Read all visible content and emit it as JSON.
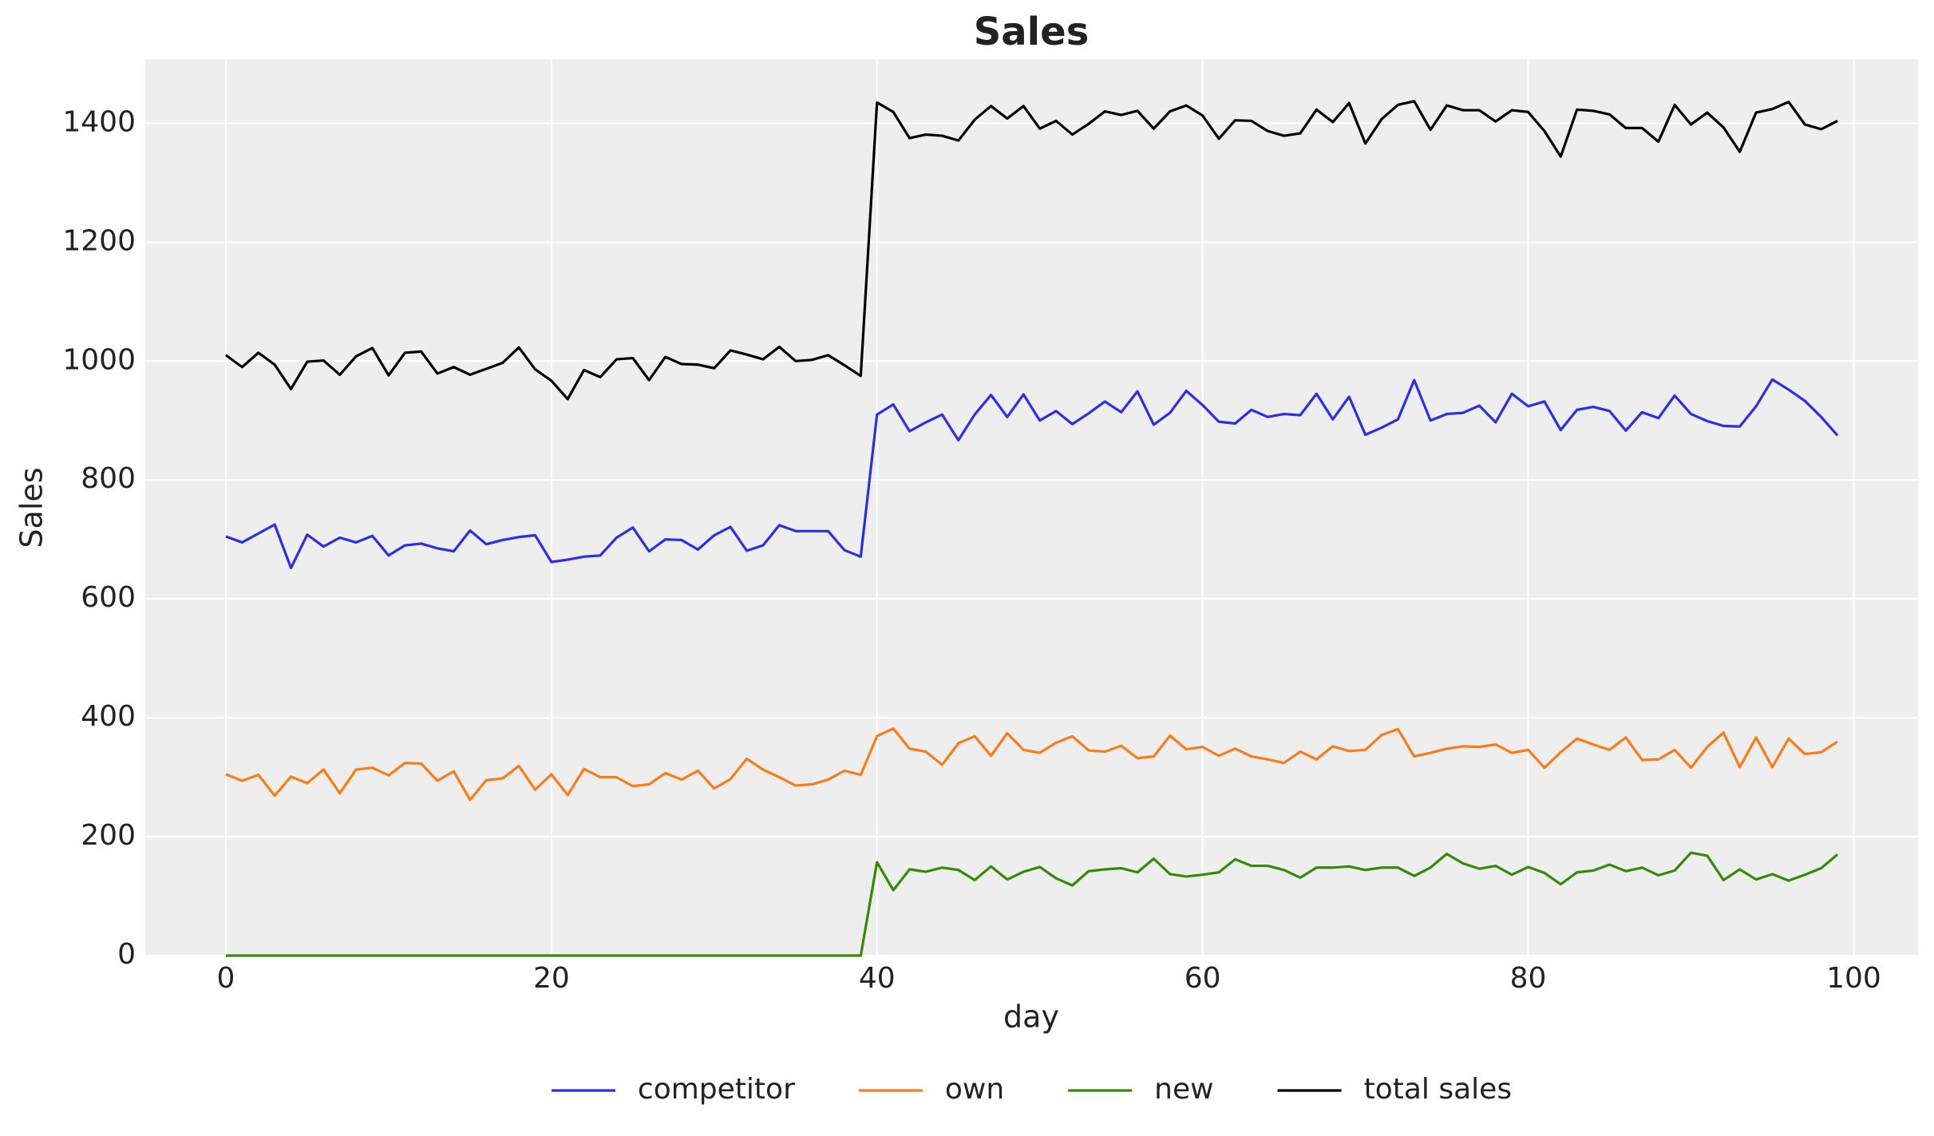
{
  "chart_data": {
    "type": "line",
    "title": "Sales",
    "x_label": "day",
    "y_label": "Sales",
    "x": [
      0,
      1,
      2,
      3,
      4,
      5,
      6,
      7,
      8,
      9,
      10,
      11,
      12,
      13,
      14,
      15,
      16,
      17,
      18,
      19,
      20,
      21,
      22,
      23,
      24,
      25,
      26,
      27,
      28,
      29,
      30,
      31,
      32,
      33,
      34,
      35,
      36,
      37,
      38,
      39,
      40,
      41,
      42,
      43,
      44,
      45,
      46,
      47,
      48,
      49,
      50,
      51,
      52,
      53,
      54,
      55,
      56,
      57,
      58,
      59,
      60,
      61,
      62,
      63,
      64,
      65,
      66,
      67,
      68,
      69,
      70,
      71,
      72,
      73,
      74,
      75,
      76,
      77,
      78,
      79,
      80,
      81,
      82,
      83,
      84,
      85,
      86,
      87,
      88,
      89,
      90,
      91,
      92,
      93,
      94,
      95,
      96,
      97,
      98,
      99
    ],
    "series": [
      {
        "name": "competitor",
        "color": "#2a2eec",
        "values": [
          705,
          695,
          710,
          725,
          652,
          708,
          688,
          703,
          695,
          706,
          673,
          690,
          693,
          685,
          680,
          715,
          692,
          699,
          704,
          707,
          662,
          666,
          671,
          673,
          703,
          720,
          680,
          700,
          699,
          683,
          707,
          721,
          681,
          690,
          724,
          714,
          714,
          714,
          682,
          671,
          910,
          927,
          882,
          897,
          910,
          867,
          910,
          943,
          906,
          944,
          900,
          916,
          894,
          912,
          932,
          914,
          949,
          893,
          913,
          950,
          926,
          898,
          895,
          918,
          906,
          911,
          909,
          945,
          902,
          940,
          876,
          888,
          902,
          968,
          900,
          911,
          913,
          925,
          897,
          945,
          924,
          932,
          884,
          918,
          923,
          916,
          883,
          914,
          904,
          942,
          911,
          899,
          891,
          890,
          924,
          969,
          952,
          933,
          906,
          875
        ]
      },
      {
        "name": "own",
        "color": "#fa7c17",
        "values": [
          305,
          294,
          304,
          269,
          301,
          290,
          313,
          273,
          313,
          316,
          303,
          324,
          323,
          294,
          310,
          262,
          295,
          298,
          319,
          279,
          305,
          270,
          314,
          300,
          300,
          285,
          288,
          307,
          296,
          311,
          281,
          297,
          331,
          313,
          300,
          286,
          288,
          296,
          311,
          304,
          369,
          382,
          348,
          343,
          321,
          357,
          369,
          336,
          374,
          346,
          341,
          358,
          369,
          345,
          343,
          353,
          332,
          335,
          370,
          347,
          351,
          336,
          348,
          335,
          330,
          324,
          343,
          330,
          352,
          344,
          346,
          371,
          381,
          335,
          341,
          348,
          352,
          351,
          355,
          341,
          346,
          316,
          342,
          365,
          355,
          346,
          367,
          329,
          330,
          346,
          316,
          351,
          375,
          317,
          367,
          317,
          365,
          339,
          342,
          360
        ]
      },
      {
        "name": "new",
        "color": "#328c06",
        "values": [
          0,
          0,
          0,
          0,
          0,
          0,
          0,
          0,
          0,
          0,
          0,
          0,
          0,
          0,
          0,
          0,
          0,
          0,
          0,
          0,
          0,
          0,
          0,
          0,
          0,
          0,
          0,
          0,
          0,
          0,
          0,
          0,
          0,
          0,
          0,
          0,
          0,
          0,
          0,
          0,
          157,
          110,
          145,
          141,
          148,
          144,
          127,
          150,
          128,
          141,
          149,
          130,
          118,
          142,
          145,
          147,
          140,
          163,
          137,
          133,
          136,
          140,
          162,
          151,
          151,
          144,
          131,
          148,
          148,
          150,
          144,
          148,
          148,
          134,
          148,
          171,
          155,
          146,
          151,
          136,
          149,
          139,
          120,
          140,
          143,
          153,
          142,
          148,
          135,
          143,
          173,
          168,
          127,
          145,
          128,
          137,
          126,
          136,
          147,
          170
        ]
      },
      {
        "name": "total sales",
        "color": "#000000",
        "values": [
          1010,
          990,
          1014,
          994,
          953,
          999,
          1001,
          977,
          1008,
          1022,
          976,
          1014,
          1016,
          979,
          990,
          977,
          987,
          997,
          1023,
          986,
          967,
          936,
          985,
          973,
          1003,
          1005,
          968,
          1007,
          995,
          994,
          988,
          1018,
          1011,
          1003,
          1024,
          1000,
          1002,
          1010,
          993,
          975,
          1435,
          1419,
          1375,
          1381,
          1379,
          1371,
          1406,
          1429,
          1408,
          1429,
          1391,
          1404,
          1381,
          1399,
          1420,
          1414,
          1421,
          1391,
          1420,
          1430,
          1413,
          1374,
          1405,
          1404,
          1387,
          1379,
          1383,
          1423,
          1402,
          1434,
          1366,
          1407,
          1431,
          1437,
          1389,
          1430,
          1422,
          1422,
          1403,
          1422,
          1419,
          1387,
          1344,
          1423,
          1421,
          1415,
          1392,
          1392,
          1369,
          1431,
          1398,
          1418,
          1393,
          1352,
          1418,
          1424,
          1436,
          1398,
          1390,
          1404
        ]
      }
    ],
    "xlim": [
      -4.95,
      103.95
    ],
    "ylim": [
      0,
      1508
    ],
    "xticks": [
      0,
      20,
      40,
      60,
      80,
      100
    ],
    "yticks": [
      0,
      200,
      400,
      600,
      800,
      1000,
      1200,
      1400
    ],
    "grid": true,
    "legend": "bottom"
  }
}
